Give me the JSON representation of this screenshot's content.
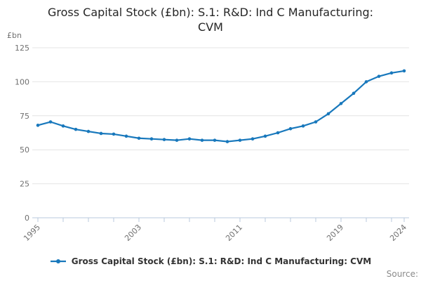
{
  "title_lines": [
    "Gross Capital Stock (£bn): S.1: R&D: Ind C Manufacturing:",
    "CVM"
  ],
  "y_axis": {
    "unit": "£bn",
    "ticks": [
      0,
      25,
      50,
      75,
      100,
      125
    ]
  },
  "x_axis": {
    "labeled_ticks": [
      1995,
      2003,
      2011,
      2019,
      2024
    ],
    "minor_tick_years": [
      1995,
      1997,
      1999,
      2001,
      2003,
      2005,
      2007,
      2009,
      2011,
      2013,
      2015,
      2017,
      2019,
      2021,
      2023,
      2024
    ]
  },
  "legend": {
    "label": "Gross Capital Stock (£bn): S.1: R&D: Ind C Manufacturing: CVM"
  },
  "footer": {
    "source_label": "Source:"
  },
  "colors": {
    "line": "#1878bc",
    "axis": "#b9c8dc",
    "grid": "#e4e4e4",
    "tick_label": "#707070",
    "title": "#262626",
    "legend_text": "#333333",
    "source": "#8a8a8a"
  },
  "chart_data": {
    "type": "line",
    "title": "Gross Capital Stock (£bn): S.1: R&D: Ind C Manufacturing: CVM",
    "xlabel": "",
    "ylabel": "£bn",
    "ylim": [
      0,
      125
    ],
    "grid": "horizontal",
    "legend_position": "bottom",
    "x": [
      1995,
      1996,
      1997,
      1998,
      1999,
      2000,
      2001,
      2002,
      2003,
      2004,
      2005,
      2006,
      2007,
      2008,
      2009,
      2010,
      2011,
      2012,
      2013,
      2014,
      2015,
      2016,
      2017,
      2018,
      2019,
      2020,
      2021,
      2022,
      2023,
      2024
    ],
    "series": [
      {
        "name": "Gross Capital Stock (£bn): S.1: R&D: Ind C Manufacturing: CVM",
        "values": [
          68,
          70.5,
          67.5,
          65,
          63.5,
          62,
          61.5,
          60,
          58.5,
          58,
          57.5,
          57,
          58,
          57,
          57,
          56,
          57,
          58,
          60,
          62.5,
          65.5,
          67.5,
          70.5,
          76.5,
          84,
          91.5,
          100,
          104,
          106.5,
          108
        ]
      }
    ]
  }
}
